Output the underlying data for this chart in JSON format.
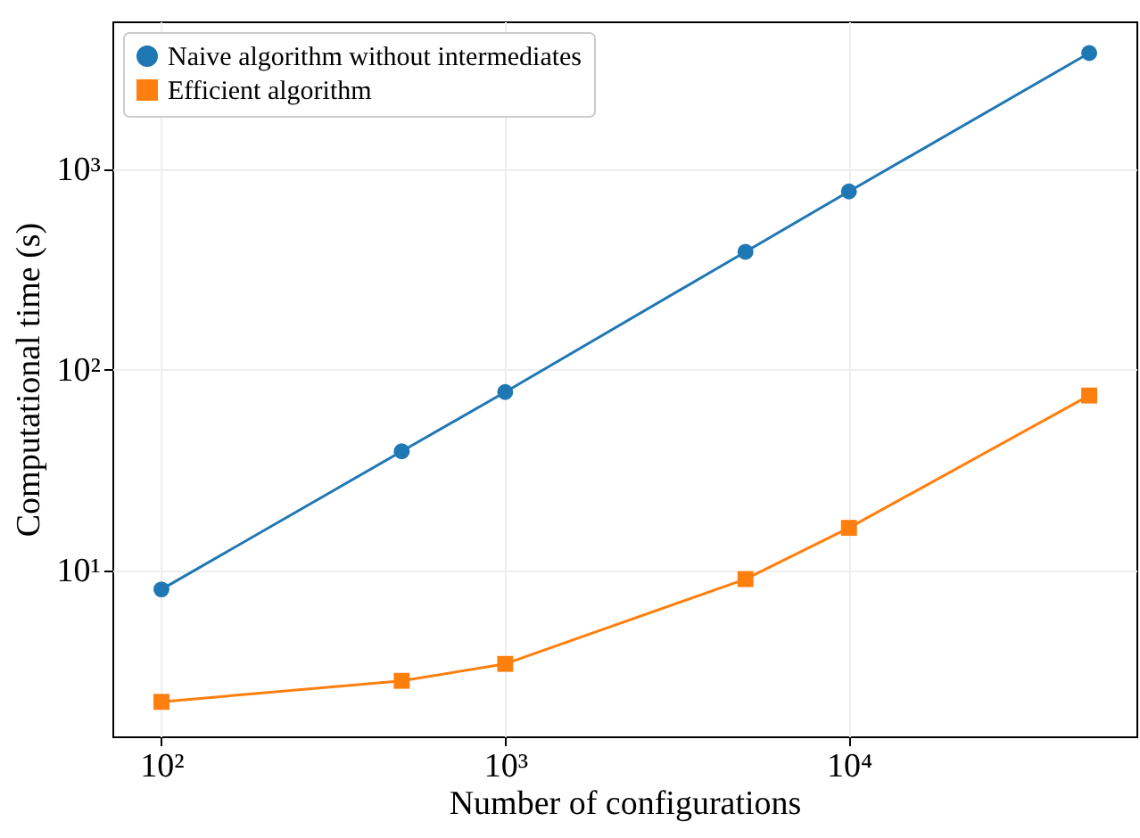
{
  "chart_data": {
    "type": "line",
    "xlabel": "Number of configurations",
    "ylabel": "Computational time (s)",
    "log": "xy",
    "grid": true,
    "legend": "top left",
    "x": [
      100,
      500,
      1000,
      5000,
      10000,
      50000
    ],
    "xlim": [
      72,
      68600
    ],
    "ylim": [
      1.48,
      5420
    ],
    "xticks": [
      {
        "value": 100,
        "label": "10²"
      },
      {
        "value": 1000,
        "label": "10³"
      },
      {
        "value": 10000,
        "label": "10⁴"
      }
    ],
    "yticks": [
      {
        "value": 10,
        "label": "10¹"
      },
      {
        "value": 100,
        "label": "10²"
      },
      {
        "value": 1000,
        "label": "10³"
      }
    ],
    "series": [
      {
        "name": "Naive algorithm without intermediates",
        "color": "#1f77b4",
        "marker": "circle",
        "values": [
          8.0,
          39,
          77,
          385,
          770,
          3770
        ]
      },
      {
        "name": "Efficient algorithm",
        "color": "#ff7f0e",
        "marker": "square",
        "values": [
          2.2,
          2.8,
          3.4,
          9.0,
          16.2,
          74
        ]
      }
    ]
  }
}
